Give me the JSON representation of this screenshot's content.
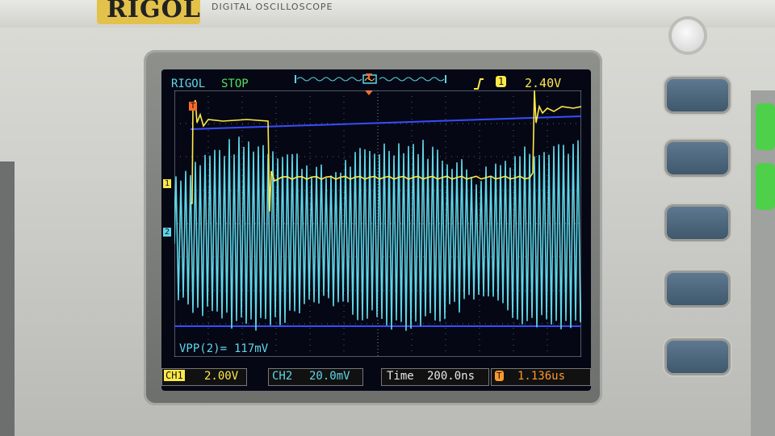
{
  "brand": {
    "logo": "RIGOL",
    "subtitle": "DIGITAL OSCILLOSCOPE"
  },
  "status_bar": {
    "brand_text": "RIGOL",
    "run_state": "STOP",
    "trigger_level": "2.40V",
    "trigger_channel": "1"
  },
  "markers": {
    "ch1": "1",
    "ch2": "2",
    "trigger": "T"
  },
  "measurement": {
    "label": "VPP(2)=",
    "value": "117mV"
  },
  "bottom": {
    "ch1_label": "CH1",
    "ch1_scale": "2.00V",
    "ch2_label": "CH2",
    "ch2_scale": "20.0mV",
    "time_label": "Time",
    "time_scale": "200.0ns",
    "offset_label": "T",
    "offset_value": "1.136us"
  },
  "colors": {
    "ch1": "#ffe94a",
    "ch2": "#5fd6e8",
    "cursor": "#3a4cff",
    "bg": "#050814",
    "run_stop": "#4fe05a"
  }
}
